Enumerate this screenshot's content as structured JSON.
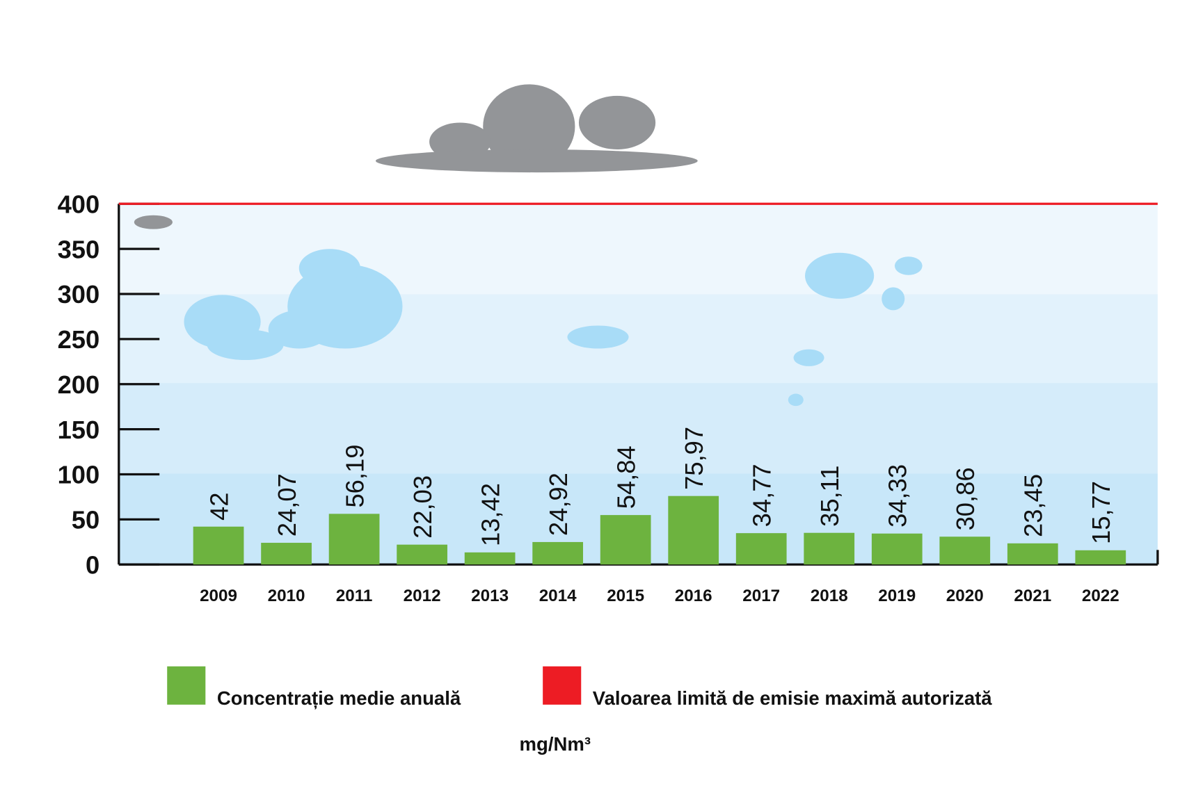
{
  "chart_data": {
    "type": "bar",
    "categories": [
      "2009",
      "2010",
      "2011",
      "2012",
      "2013",
      "2014",
      "2015",
      "2016",
      "2017",
      "2018",
      "2019",
      "2020",
      "2021",
      "2022"
    ],
    "series": [
      {
        "name": "Concentrație medie anuală",
        "color": "#6db33f",
        "values": [
          42,
          24.07,
          56.19,
          22.03,
          13.42,
          24.92,
          54.84,
          75.97,
          34.77,
          35.11,
          34.33,
          30.86,
          23.45,
          15.77
        ],
        "value_labels": [
          "42",
          "24,07",
          "56,19",
          "22,03",
          "13,42",
          "24,92",
          "54,84",
          "75,97",
          "34,77",
          "35,11",
          "34,33",
          "30,86",
          "23,45",
          "15,77"
        ]
      }
    ],
    "limit": {
      "name": "Valoarea limită de emisie maximă autorizată",
      "value": 400,
      "color": "#ed1c24"
    },
    "unit": "mg/Nm³",
    "ylim": [
      0,
      400
    ],
    "yticks": [
      0,
      50,
      100,
      150,
      200,
      250,
      300,
      350,
      400
    ]
  }
}
